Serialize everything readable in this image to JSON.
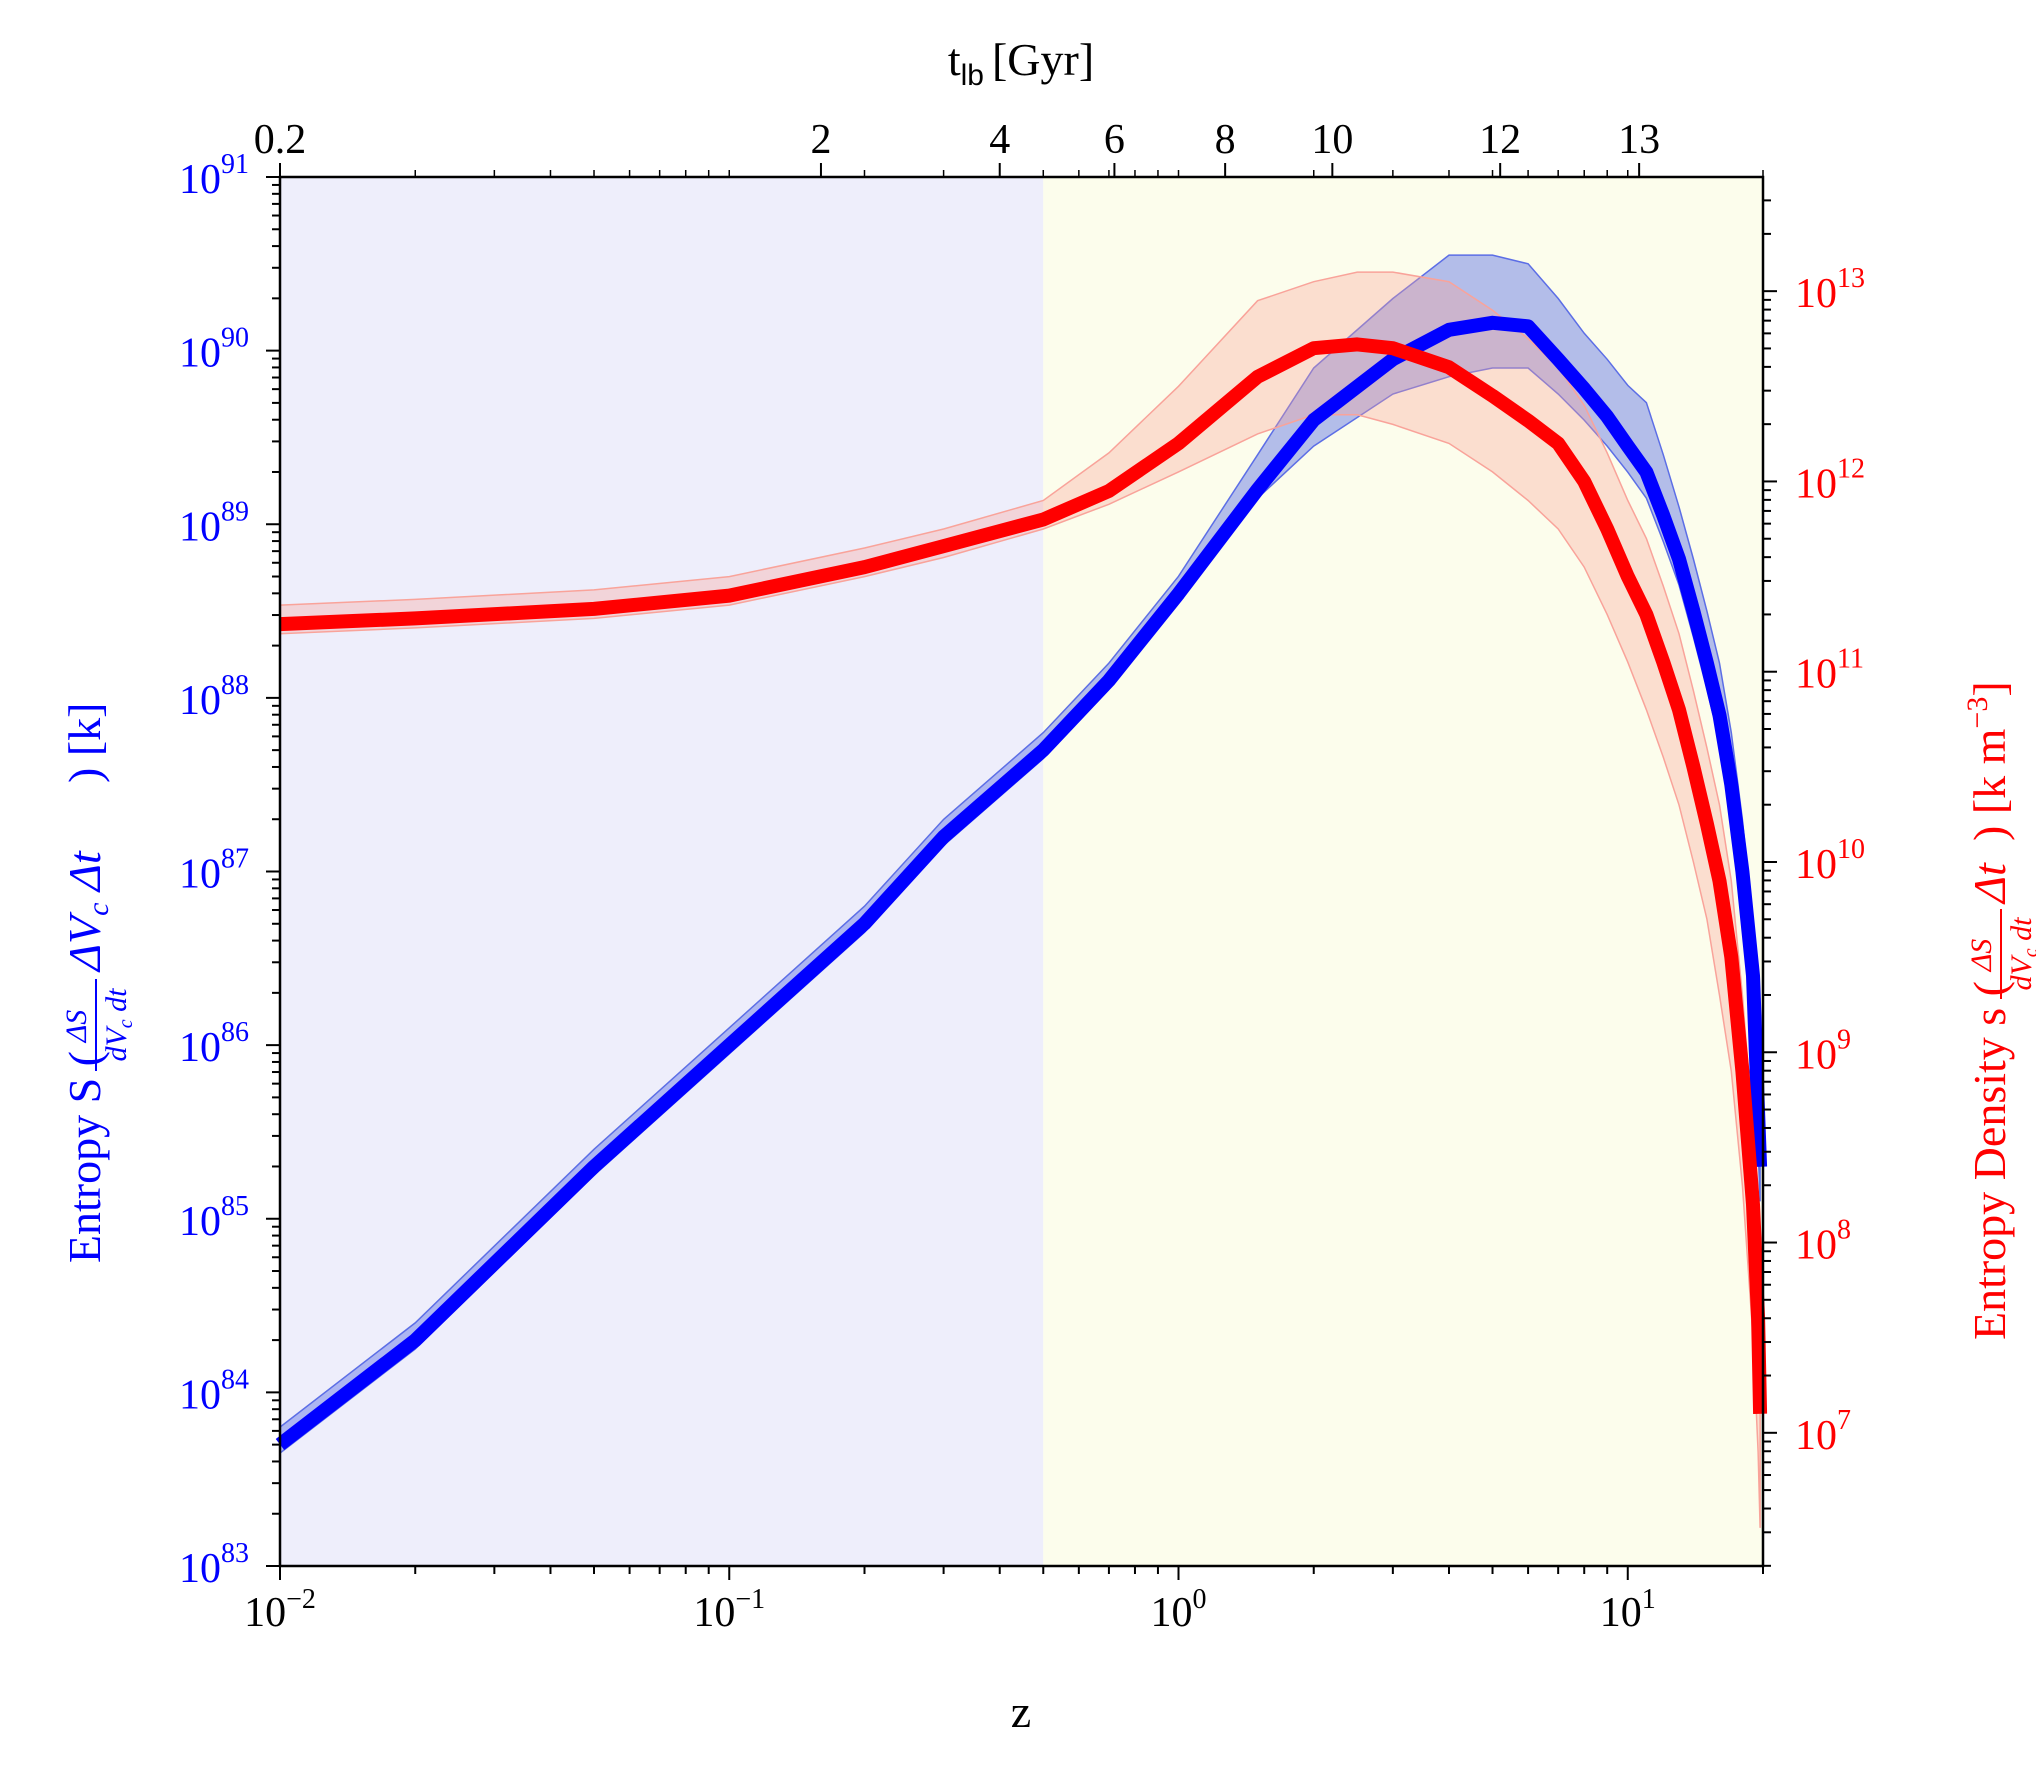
{
  "chart_data": {
    "type": "line",
    "title": "",
    "xlabel": "z",
    "top_xlabel_main": "t",
    "top_xlabel_sub": "lb",
    "top_xlabel_unit": "[Gyr]",
    "x_scale": "log",
    "xlim": [
      0.01,
      20
    ],
    "x_ticks": [
      {
        "base": "10",
        "exp": "−2",
        "value": 0.01
      },
      {
        "base": "10",
        "exp": "−1",
        "value": 0.1
      },
      {
        "base": "10",
        "exp": "0",
        "value": 1
      },
      {
        "base": "10",
        "exp": "1",
        "value": 10
      }
    ],
    "top_ticks": [
      {
        "label": "0.2",
        "z": 0.01
      },
      {
        "label": "2",
        "z": 0.16
      },
      {
        "label": "4",
        "z": 0.4
      },
      {
        "label": "6",
        "z": 0.72
      },
      {
        "label": "8",
        "z": 1.27
      },
      {
        "label": "10",
        "z": 2.2
      },
      {
        "label": "12",
        "z": 5.2
      },
      {
        "label": "13",
        "z": 10.6
      }
    ],
    "left_axis": {
      "label_text": "Entropy S (",
      "frac_num": "ΔS",
      "frac_den": "dV",
      "frac_den_sub": "c",
      "frac_den_tail": " dt",
      "expr": "ΔV",
      "expr_sub": "c",
      "expr_tail": " Δt",
      "close_text": ") [k]",
      "color": "#0000ff",
      "scale": "log",
      "ylim_exp": [
        83,
        91
      ],
      "ticks": [
        {
          "base": "10",
          "exp": "83",
          "value": 83
        },
        {
          "base": "10",
          "exp": "84",
          "value": 84
        },
        {
          "base": "10",
          "exp": "85",
          "value": 85
        },
        {
          "base": "10",
          "exp": "86",
          "value": 86
        },
        {
          "base": "10",
          "exp": "87",
          "value": 87
        },
        {
          "base": "10",
          "exp": "88",
          "value": 88
        },
        {
          "base": "10",
          "exp": "89",
          "value": 89
        },
        {
          "base": "10",
          "exp": "90",
          "value": 90
        },
        {
          "base": "10",
          "exp": "91",
          "value": 91
        }
      ]
    },
    "right_axis": {
      "label_text": "Entropy Density s (",
      "frac_num": "ΔS",
      "frac_den": "dV",
      "frac_den_sub": "c",
      "frac_den_tail": " dt",
      "expr": "Δt",
      "close_text": ") [k m",
      "close_sup": "−3",
      "close_end": "]",
      "color": "#ff0000",
      "scale": "log",
      "ylim_exp": [
        6.3,
        13.6
      ],
      "ticks": [
        {
          "base": "10",
          "exp": "7",
          "value": 7
        },
        {
          "base": "10",
          "exp": "8",
          "value": 8
        },
        {
          "base": "10",
          "exp": "9",
          "value": 9
        },
        {
          "base": "10",
          "exp": "10",
          "value": 10
        },
        {
          "base": "10",
          "exp": "11",
          "value": 11
        },
        {
          "base": "10",
          "exp": "12",
          "value": 12
        },
        {
          "base": "10",
          "exp": "13",
          "value": 13
        }
      ]
    },
    "background_regions": [
      {
        "from": 0.01,
        "to": 0.5,
        "color": "#eeeefb"
      },
      {
        "from": 0.5,
        "to": 20,
        "color": "#fcfdec"
      }
    ],
    "series": [
      {
        "axis": "left",
        "color": "#0000ff",
        "band_color": "#5c6ee6",
        "x": [
          0.01,
          0.02,
          0.05,
          0.1,
          0.2,
          0.3,
          0.5,
          0.7,
          1.0,
          1.5,
          2.0,
          3.0,
          4.0,
          5.0,
          6.0,
          7.0,
          8.0,
          9.0,
          10.0,
          11.0,
          12.0,
          13.0,
          14.0,
          15.0,
          16.0,
          17.0,
          18.0,
          19.0,
          19.7
        ],
        "y": [
          83.7,
          84.3,
          85.3,
          86.0,
          86.7,
          87.2,
          87.7,
          88.1,
          88.6,
          89.2,
          89.6,
          89.95,
          90.12,
          90.16,
          90.14,
          89.95,
          89.78,
          89.62,
          89.45,
          89.3,
          89.05,
          88.8,
          88.5,
          88.2,
          87.9,
          87.5,
          87.0,
          86.4,
          85.3
        ],
        "band_low": [
          83.65,
          84.25,
          85.25,
          85.95,
          86.65,
          87.15,
          87.65,
          88.05,
          88.55,
          89.15,
          89.45,
          89.75,
          89.85,
          89.9,
          89.9,
          89.75,
          89.6,
          89.45,
          89.3,
          89.15,
          88.9,
          88.65,
          88.35,
          88.05,
          87.75,
          87.35,
          86.85,
          86.2,
          85.1
        ],
        "band_high": [
          83.8,
          84.4,
          85.4,
          86.1,
          86.8,
          87.3,
          87.8,
          88.2,
          88.7,
          89.4,
          89.9,
          90.3,
          90.55,
          90.55,
          90.5,
          90.3,
          90.1,
          89.95,
          89.8,
          89.7,
          89.4,
          89.1,
          88.8,
          88.5,
          88.2,
          87.8,
          87.3,
          86.7,
          85.6
        ]
      },
      {
        "axis": "right",
        "color": "#ff0000",
        "band_color": "#f9a39a",
        "x": [
          0.01,
          0.02,
          0.05,
          0.1,
          0.2,
          0.3,
          0.5,
          0.7,
          1.0,
          1.5,
          2.0,
          2.5,
          3.0,
          4.0,
          5.0,
          6.0,
          7.0,
          8.0,
          9.0,
          10.0,
          11.0,
          12.0,
          13.0,
          14.0,
          15.0,
          16.0,
          17.0,
          18.0,
          19.0,
          19.5,
          19.7
        ],
        "y": [
          11.25,
          11.28,
          11.33,
          11.4,
          11.55,
          11.66,
          11.8,
          11.95,
          12.2,
          12.55,
          12.7,
          12.72,
          12.7,
          12.6,
          12.45,
          12.32,
          12.2,
          12.0,
          11.75,
          11.5,
          11.3,
          11.05,
          10.8,
          10.5,
          10.2,
          9.9,
          9.5,
          8.9,
          8.2,
          7.6,
          7.1
        ],
        "band_low": [
          11.2,
          11.23,
          11.28,
          11.35,
          11.5,
          11.6,
          11.75,
          11.88,
          12.05,
          12.25,
          12.35,
          12.35,
          12.3,
          12.2,
          12.05,
          11.9,
          11.75,
          11.55,
          11.3,
          11.05,
          10.8,
          10.55,
          10.3,
          10.0,
          9.7,
          9.3,
          8.9,
          8.3,
          7.5,
          6.9,
          6.5
        ],
        "band_high": [
          11.35,
          11.38,
          11.43,
          11.5,
          11.65,
          11.75,
          11.9,
          12.15,
          12.5,
          12.95,
          13.05,
          13.1,
          13.1,
          13.05,
          12.9,
          12.75,
          12.6,
          12.4,
          12.15,
          11.9,
          11.7,
          11.45,
          11.2,
          10.9,
          10.6,
          10.3,
          9.9,
          9.3,
          8.6,
          8.0,
          7.5
        ]
      }
    ]
  }
}
